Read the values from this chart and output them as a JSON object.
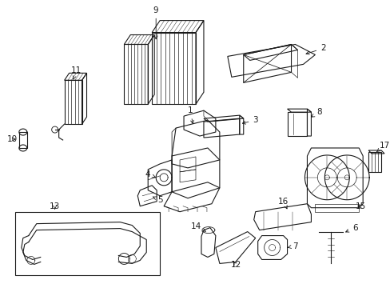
{
  "bg_color": "#ffffff",
  "line_color": "#1a1a1a",
  "lw": 0.8
}
